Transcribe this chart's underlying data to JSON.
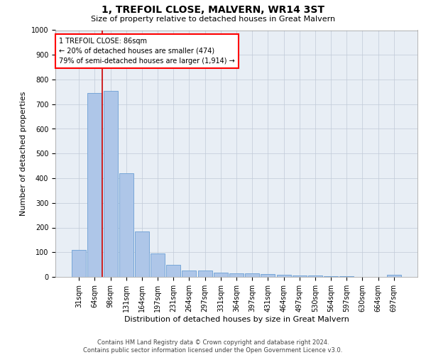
{
  "title": "1, TREFOIL CLOSE, MALVERN, WR14 3ST",
  "subtitle": "Size of property relative to detached houses in Great Malvern",
  "xlabel": "Distribution of detached houses by size in Great Malvern",
  "ylabel": "Number of detached properties",
  "footer_line1": "Contains HM Land Registry data © Crown copyright and database right 2024.",
  "footer_line2": "Contains public sector information licensed under the Open Government Licence v3.0.",
  "categories": [
    "31sqm",
    "64sqm",
    "98sqm",
    "131sqm",
    "164sqm",
    "197sqm",
    "231sqm",
    "264sqm",
    "297sqm",
    "331sqm",
    "364sqm",
    "397sqm",
    "431sqm",
    "464sqm",
    "497sqm",
    "530sqm",
    "564sqm",
    "597sqm",
    "630sqm",
    "664sqm",
    "697sqm"
  ],
  "values": [
    110,
    745,
    755,
    420,
    185,
    95,
    48,
    25,
    25,
    18,
    15,
    15,
    12,
    8,
    7,
    5,
    3,
    2,
    1,
    1,
    8
  ],
  "bar_color": "#aec6e8",
  "bar_edge_color": "#6b9fd4",
  "grid_color": "#c0cad8",
  "bg_color": "#e8eef5",
  "vline_color": "#cc0000",
  "vline_x": 1.5,
  "annotation_title": "1 TREFOIL CLOSE: 86sqm",
  "annotation_line1": "← 20% of detached houses are smaller (474)",
  "annotation_line2": "79% of semi-detached houses are larger (1,914) →",
  "ylim": [
    0,
    1000
  ],
  "yticks": [
    0,
    100,
    200,
    300,
    400,
    500,
    600,
    700,
    800,
    900,
    1000
  ],
  "title_fontsize": 10,
  "subtitle_fontsize": 8,
  "xlabel_fontsize": 8,
  "ylabel_fontsize": 8,
  "tick_fontsize": 7,
  "footer_fontsize": 6
}
